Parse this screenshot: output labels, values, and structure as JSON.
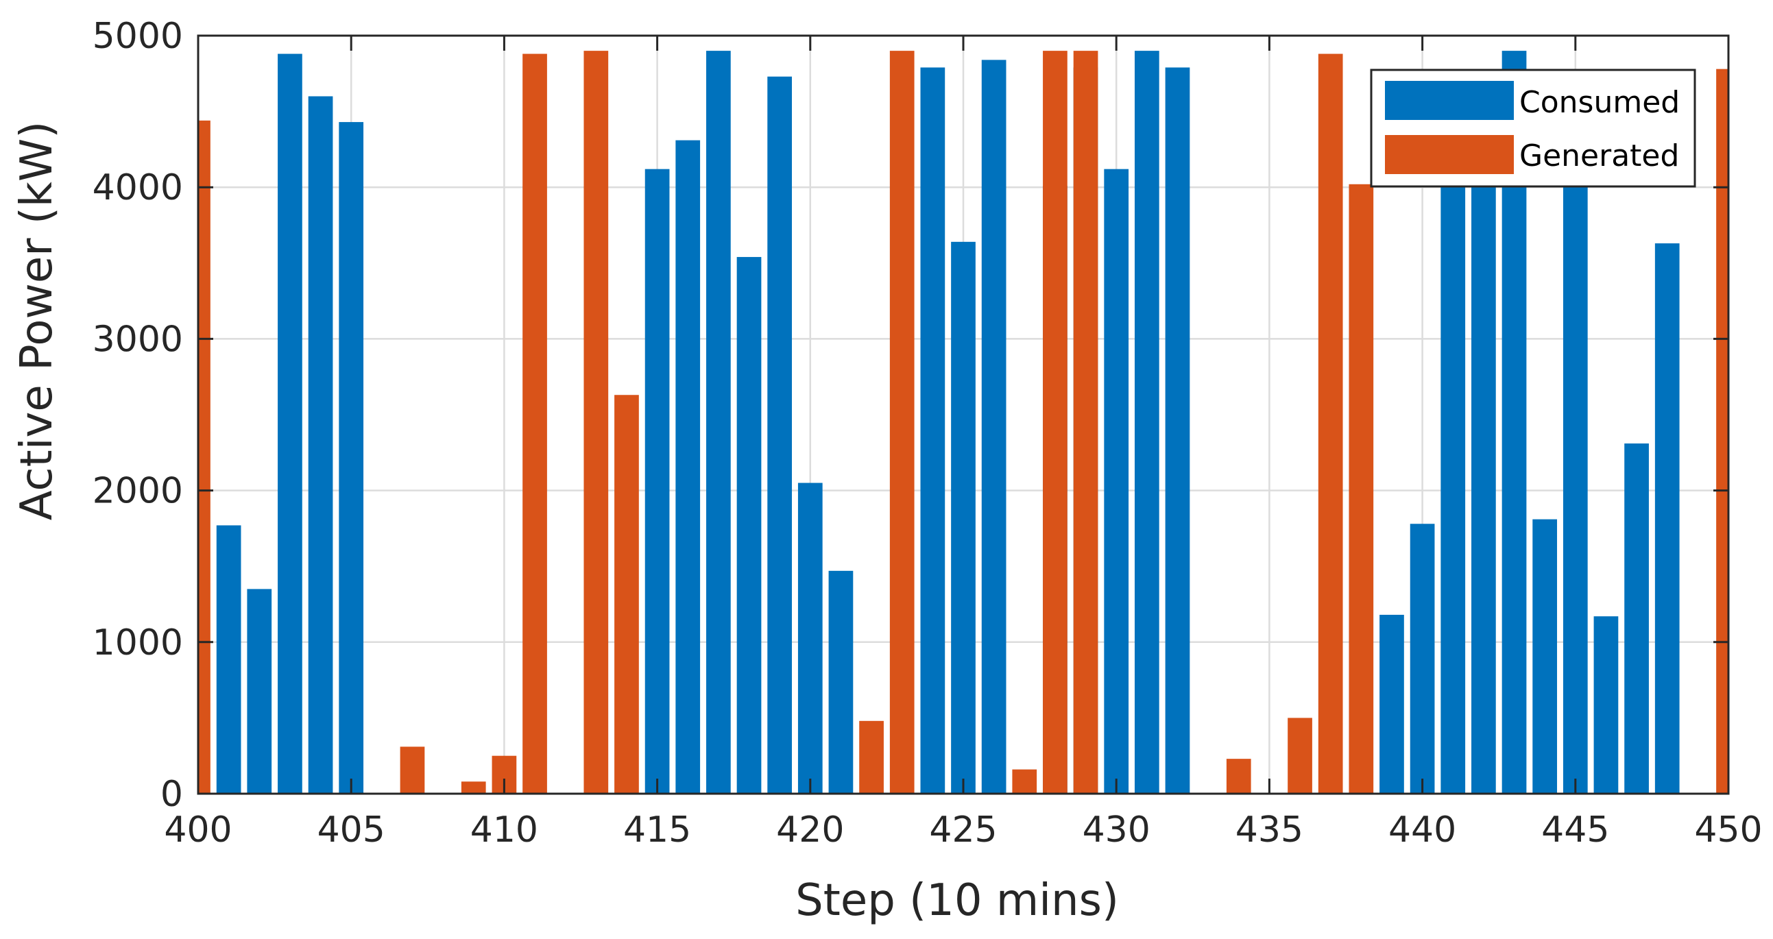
{
  "chart_data": {
    "type": "bar",
    "xlabel": "Step (10 mins)",
    "ylabel": "Active Power (kW)",
    "xlim": [
      400,
      450
    ],
    "ylim": [
      0,
      5000
    ],
    "xticks": [
      400,
      405,
      410,
      415,
      420,
      425,
      430,
      435,
      440,
      445,
      450
    ],
    "yticks": [
      0,
      1000,
      2000,
      3000,
      4000,
      5000
    ],
    "grid": true,
    "legend_position": "top-right",
    "series": [
      {
        "name": "Consumed",
        "color": "#0072BD",
        "x": [
          401,
          402,
          403,
          404,
          405,
          415,
          416,
          417,
          418,
          419,
          420,
          421,
          424,
          425,
          426,
          428,
          429,
          430,
          431,
          432,
          439,
          440,
          441,
          442,
          443,
          444,
          445,
          446,
          447,
          448
        ],
        "values": [
          1770,
          1350,
          4880,
          4600,
          4430,
          4120,
          4310,
          4900,
          3540,
          4730,
          2050,
          1470,
          4790,
          3640,
          4840,
          4010,
          4790,
          4120,
          4900,
          4790,
          1180,
          1780,
          4000,
          4000,
          4900,
          1810,
          4000,
          1170,
          2310,
          3630
        ]
      },
      {
        "name": "Generated",
        "color": "#D95319",
        "x": [
          400,
          407,
          409,
          410,
          411,
          413,
          414,
          422,
          423,
          427,
          428,
          429,
          434,
          436,
          437,
          438,
          450
        ],
        "values": [
          4440,
          310,
          80,
          250,
          4880,
          4900,
          2630,
          480,
          4900,
          160,
          4900,
          4900,
          230,
          500,
          4880,
          4020,
          4780
        ]
      }
    ]
  }
}
